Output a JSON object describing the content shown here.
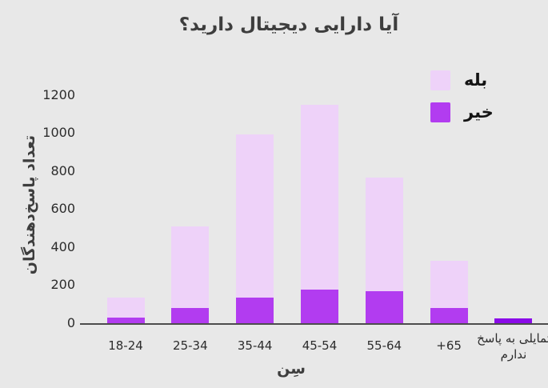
{
  "title": "آیا دارایی دیجیتال دارید؟",
  "legend": {
    "items": [
      {
        "label": "بله",
        "color": "#eed2f9"
      },
      {
        "label": "خیر",
        "color": "#b23cf0"
      }
    ]
  },
  "y_axis": {
    "title": "تعداد پاسخ‌دهندگان"
  },
  "x_axis": {
    "title": "سِن"
  },
  "colors": {
    "background": "#e8e8e8",
    "axis_line": "#4d4d4d",
    "text_dark": "#3d3d3d",
    "tick_text": "#2c2c2c",
    "yes_bar": "#eed2f9",
    "no_bar": "#b23cf0",
    "prefer_not_bar": "#8a0ae8"
  },
  "chart_data": {
    "type": "bar",
    "stacked": true,
    "title": "آیا دارایی دیجیتال دارید؟",
    "xlabel": "سِن",
    "ylabel": "تعداد پاسخ‌دهندگان",
    "categories": [
      "18-24",
      "25-34",
      "35-44",
      "45-54",
      "55-64",
      "65+",
      "تمایلی به پاسخ ندارم"
    ],
    "series": [
      {
        "name": "خیر",
        "color": "#b23cf0",
        "values": [
          30,
          80,
          135,
          175,
          170,
          80,
          25
        ],
        "color_overrides": {
          "6": "#8a0ae8"
        }
      },
      {
        "name": "بله",
        "color": "#eed2f9",
        "values": [
          105,
          430,
          860,
          975,
          595,
          250,
          0
        ]
      }
    ],
    "totals": [
      135,
      510,
      995,
      1150,
      765,
      330,
      25
    ],
    "y_ticks": [
      0,
      200,
      400,
      600,
      800,
      1000,
      1200
    ],
    "ylim": [
      0,
      1280
    ],
    "grid": false,
    "legend_position": "top-right"
  }
}
